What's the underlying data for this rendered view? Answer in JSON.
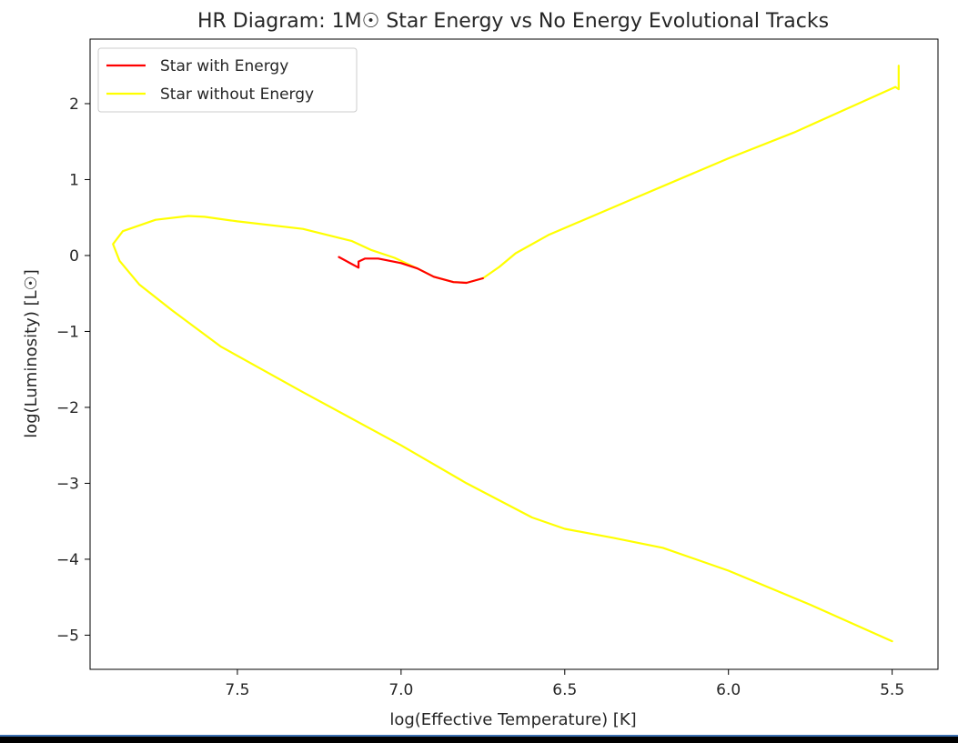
{
  "chart_data": {
    "type": "line",
    "title": "HR Diagram: 1M☉ Star Energy vs No Energy Evolutional Tracks",
    "xlabel": "log(Effective Temperature) [K]",
    "ylabel": "log(Luminosity) [L☉]",
    "x_inverted": true,
    "xlim": [
      7.95,
      5.36
    ],
    "ylim": [
      -5.45,
      2.85
    ],
    "xticks": [
      7.5,
      7.0,
      6.5,
      6.0,
      5.5
    ],
    "xtick_labels": [
      "7.5",
      "7.0",
      "6.5",
      "6.0",
      "5.5"
    ],
    "yticks": [
      2,
      1,
      0,
      -1,
      -2,
      -3,
      -4,
      -5
    ],
    "ytick_labels": [
      "2",
      "1",
      "0",
      "−1",
      "−2",
      "−3",
      "−4",
      "−5"
    ],
    "grid": false,
    "legend_position": "upper-left",
    "series": [
      {
        "name": "Star with Energy",
        "color": "#ff0000",
        "points": [
          [
            7.19,
            -0.02
          ],
          [
            7.16,
            -0.09
          ],
          [
            7.13,
            -0.16
          ],
          [
            7.13,
            -0.08
          ],
          [
            7.11,
            -0.04
          ],
          [
            7.07,
            -0.04
          ],
          [
            7.0,
            -0.1
          ],
          [
            6.95,
            -0.17
          ],
          [
            6.9,
            -0.28
          ],
          [
            6.84,
            -0.35
          ],
          [
            6.8,
            -0.36
          ],
          [
            6.75,
            -0.3
          ]
        ]
      },
      {
        "name": "Star without Energy",
        "color": "#ffff00",
        "points": [
          [
            5.48,
            2.5
          ],
          [
            5.48,
            2.19
          ],
          [
            5.49,
            2.22
          ],
          [
            5.8,
            1.62
          ],
          [
            6.0,
            1.28
          ],
          [
            6.3,
            0.73
          ],
          [
            6.55,
            0.27
          ],
          [
            6.65,
            0.03
          ],
          [
            6.7,
            -0.15
          ],
          [
            6.75,
            -0.3
          ],
          [
            6.8,
            -0.36
          ],
          [
            6.84,
            -0.35
          ],
          [
            6.9,
            -0.28
          ],
          [
            6.95,
            -0.17
          ],
          [
            7.02,
            -0.03
          ],
          [
            7.09,
            0.07
          ],
          [
            7.15,
            0.19
          ],
          [
            7.3,
            0.35
          ],
          [
            7.5,
            0.45
          ],
          [
            7.6,
            0.51
          ],
          [
            7.65,
            0.52
          ],
          [
            7.75,
            0.47
          ],
          [
            7.85,
            0.32
          ],
          [
            7.88,
            0.15
          ],
          [
            7.86,
            -0.07
          ],
          [
            7.8,
            -0.38
          ],
          [
            7.7,
            -0.72
          ],
          [
            7.55,
            -1.2
          ],
          [
            7.3,
            -1.8
          ],
          [
            7.0,
            -2.5
          ],
          [
            6.8,
            -3.0
          ],
          [
            6.6,
            -3.45
          ],
          [
            6.5,
            -3.6
          ],
          [
            6.35,
            -3.72
          ],
          [
            6.2,
            -3.85
          ],
          [
            6.0,
            -4.15
          ],
          [
            5.75,
            -4.6
          ],
          [
            5.5,
            -5.08
          ]
        ]
      }
    ]
  }
}
